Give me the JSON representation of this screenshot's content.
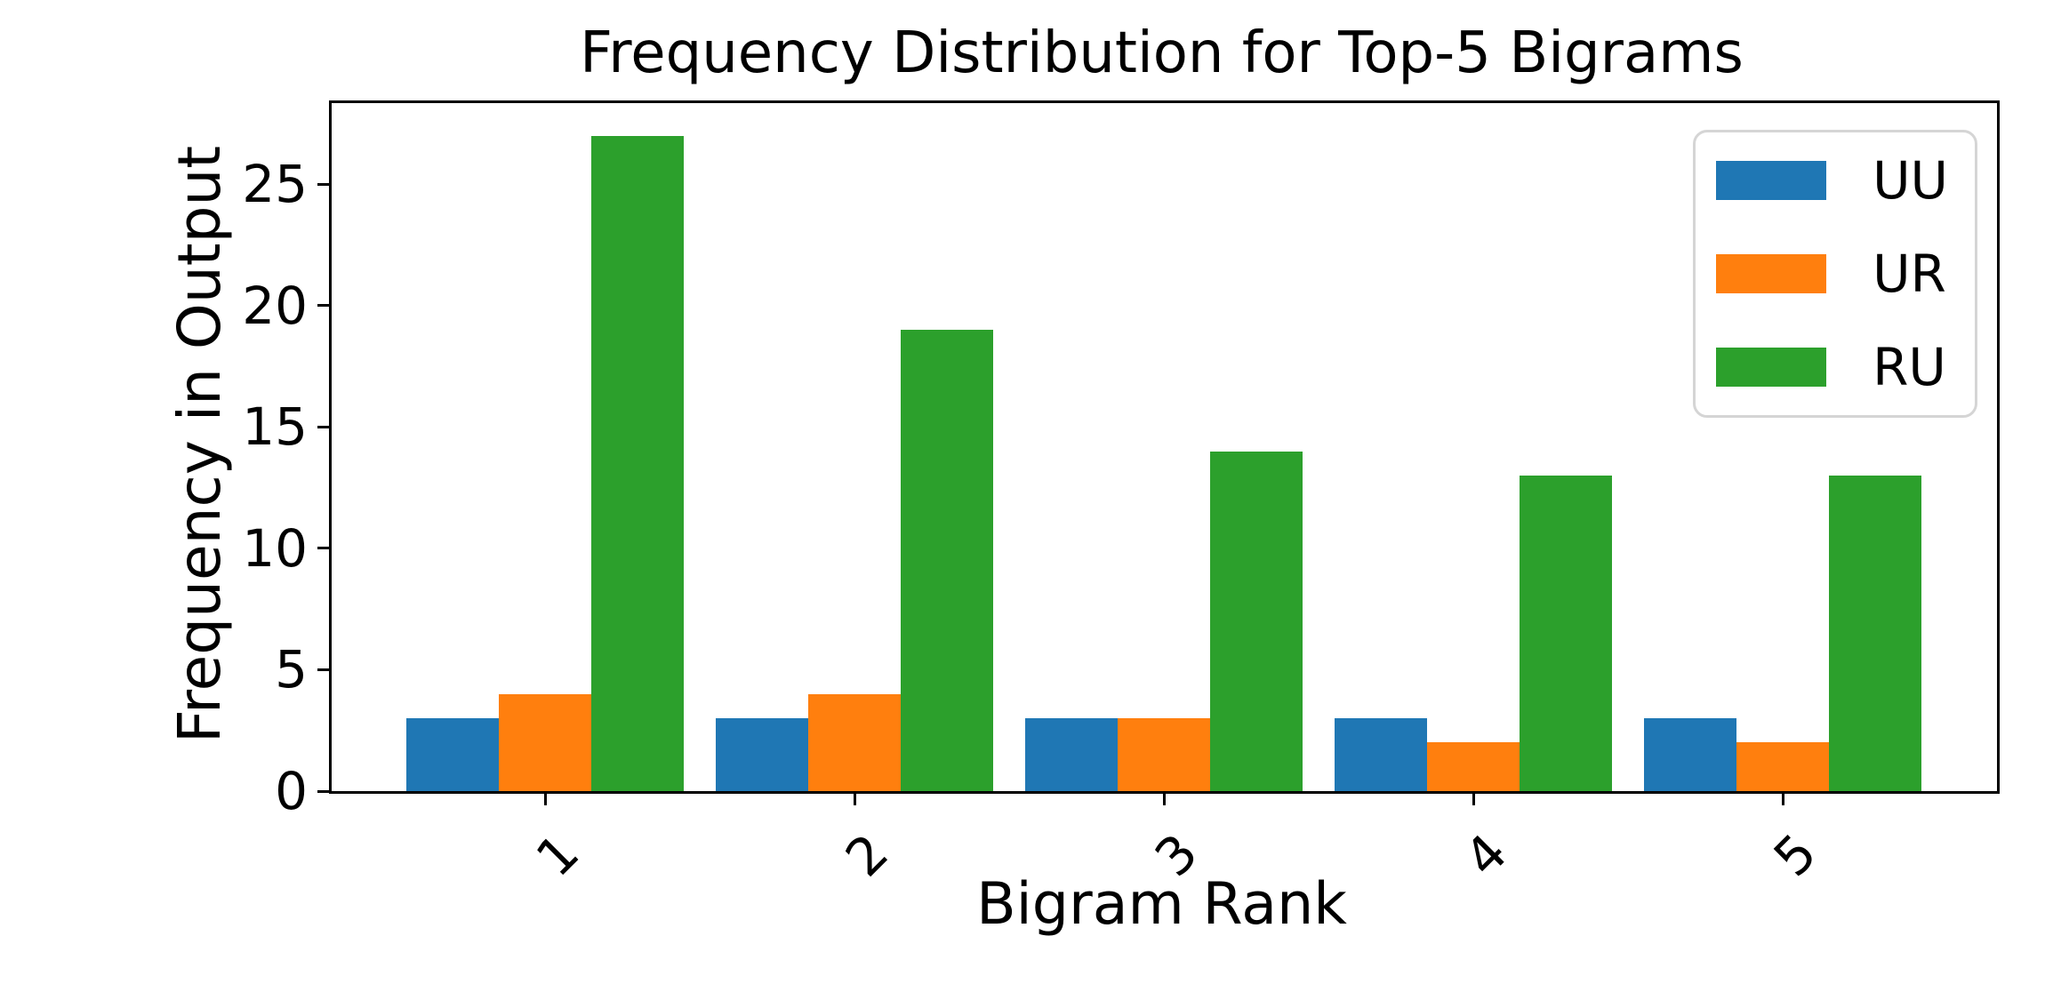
{
  "chart_data": {
    "type": "bar",
    "title": "Frequency Distribution for Top-5 Bigrams",
    "xlabel": "Bigram Rank",
    "ylabel": "Frequency in Output",
    "categories": [
      "1",
      "2",
      "3",
      "4",
      "5"
    ],
    "series": [
      {
        "name": "UU",
        "color": "#1f77b4",
        "values": [
          3,
          3,
          3,
          3,
          3
        ]
      },
      {
        "name": "UR",
        "color": "#ff7f0e",
        "values": [
          4,
          4,
          3,
          2,
          2
        ]
      },
      {
        "name": "RU",
        "color": "#2ca02c",
        "values": [
          27,
          19,
          14,
          13,
          13
        ]
      }
    ],
    "yticks": [
      0,
      5,
      10,
      15,
      20,
      25
    ],
    "ylim": [
      0,
      28.35
    ],
    "xtick_rotation": -45,
    "legend_position": "upper right",
    "grid": false,
    "axis_color": "#000000",
    "legend_border_color": "#d5d5d5"
  }
}
